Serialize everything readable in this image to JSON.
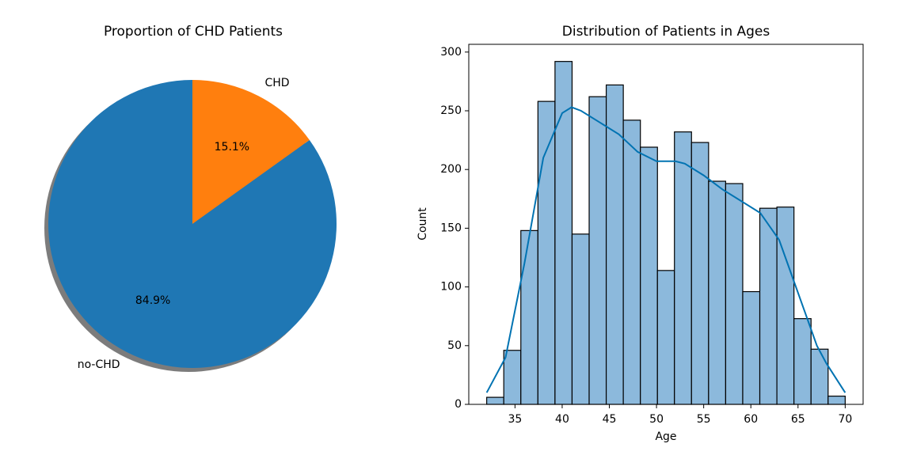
{
  "chart_data": [
    {
      "type": "pie",
      "title": "Proportion of CHD Patients",
      "labels": [
        "CHD",
        "no-CHD"
      ],
      "values": [
        15.1,
        84.9
      ],
      "value_labels": [
        "15.1%",
        "84.9%"
      ],
      "colors": [
        "#ff7f0e",
        "#1f77b4"
      ],
      "startangle": 90,
      "shadow": true
    },
    {
      "type": "histogram",
      "title": "Distribution of Patients in Ages",
      "xlabel": "Age",
      "ylabel": "Count",
      "bins": [
        32,
        33.81,
        35.62,
        37.43,
        39.24,
        41.05,
        42.86,
        44.67,
        46.48,
        48.29,
        50.1,
        51.9,
        53.71,
        55.52,
        57.33,
        59.14,
        60.95,
        62.76,
        64.57,
        66.38,
        68.19,
        70
      ],
      "counts": [
        6,
        46,
        148,
        258,
        292,
        145,
        262,
        272,
        242,
        219,
        114,
        232,
        223,
        190,
        188,
        96,
        167,
        168,
        73,
        47,
        7
      ],
      "color": "#8cb9dc",
      "edgecolor": "#000000",
      "xlim": [
        30.1,
        71.9
      ],
      "ylim": [
        0,
        306.6
      ],
      "xticks": [
        35,
        40,
        45,
        50,
        55,
        60,
        65,
        70
      ],
      "yticks": [
        0,
        50,
        100,
        150,
        200,
        250,
        300
      ],
      "kde": {
        "x": [
          32,
          34,
          36,
          38,
          40,
          41,
          42,
          44,
          46,
          48,
          50,
          52,
          53,
          55,
          57,
          59,
          61,
          63,
          65,
          67,
          68,
          70
        ],
        "y": [
          10,
          40,
          120,
          210,
          248,
          253,
          250,
          240,
          230,
          215,
          207,
          207,
          205,
          195,
          183,
          173,
          163,
          140,
          95,
          50,
          35,
          10
        ],
        "color": "#0173b2"
      }
    }
  ]
}
